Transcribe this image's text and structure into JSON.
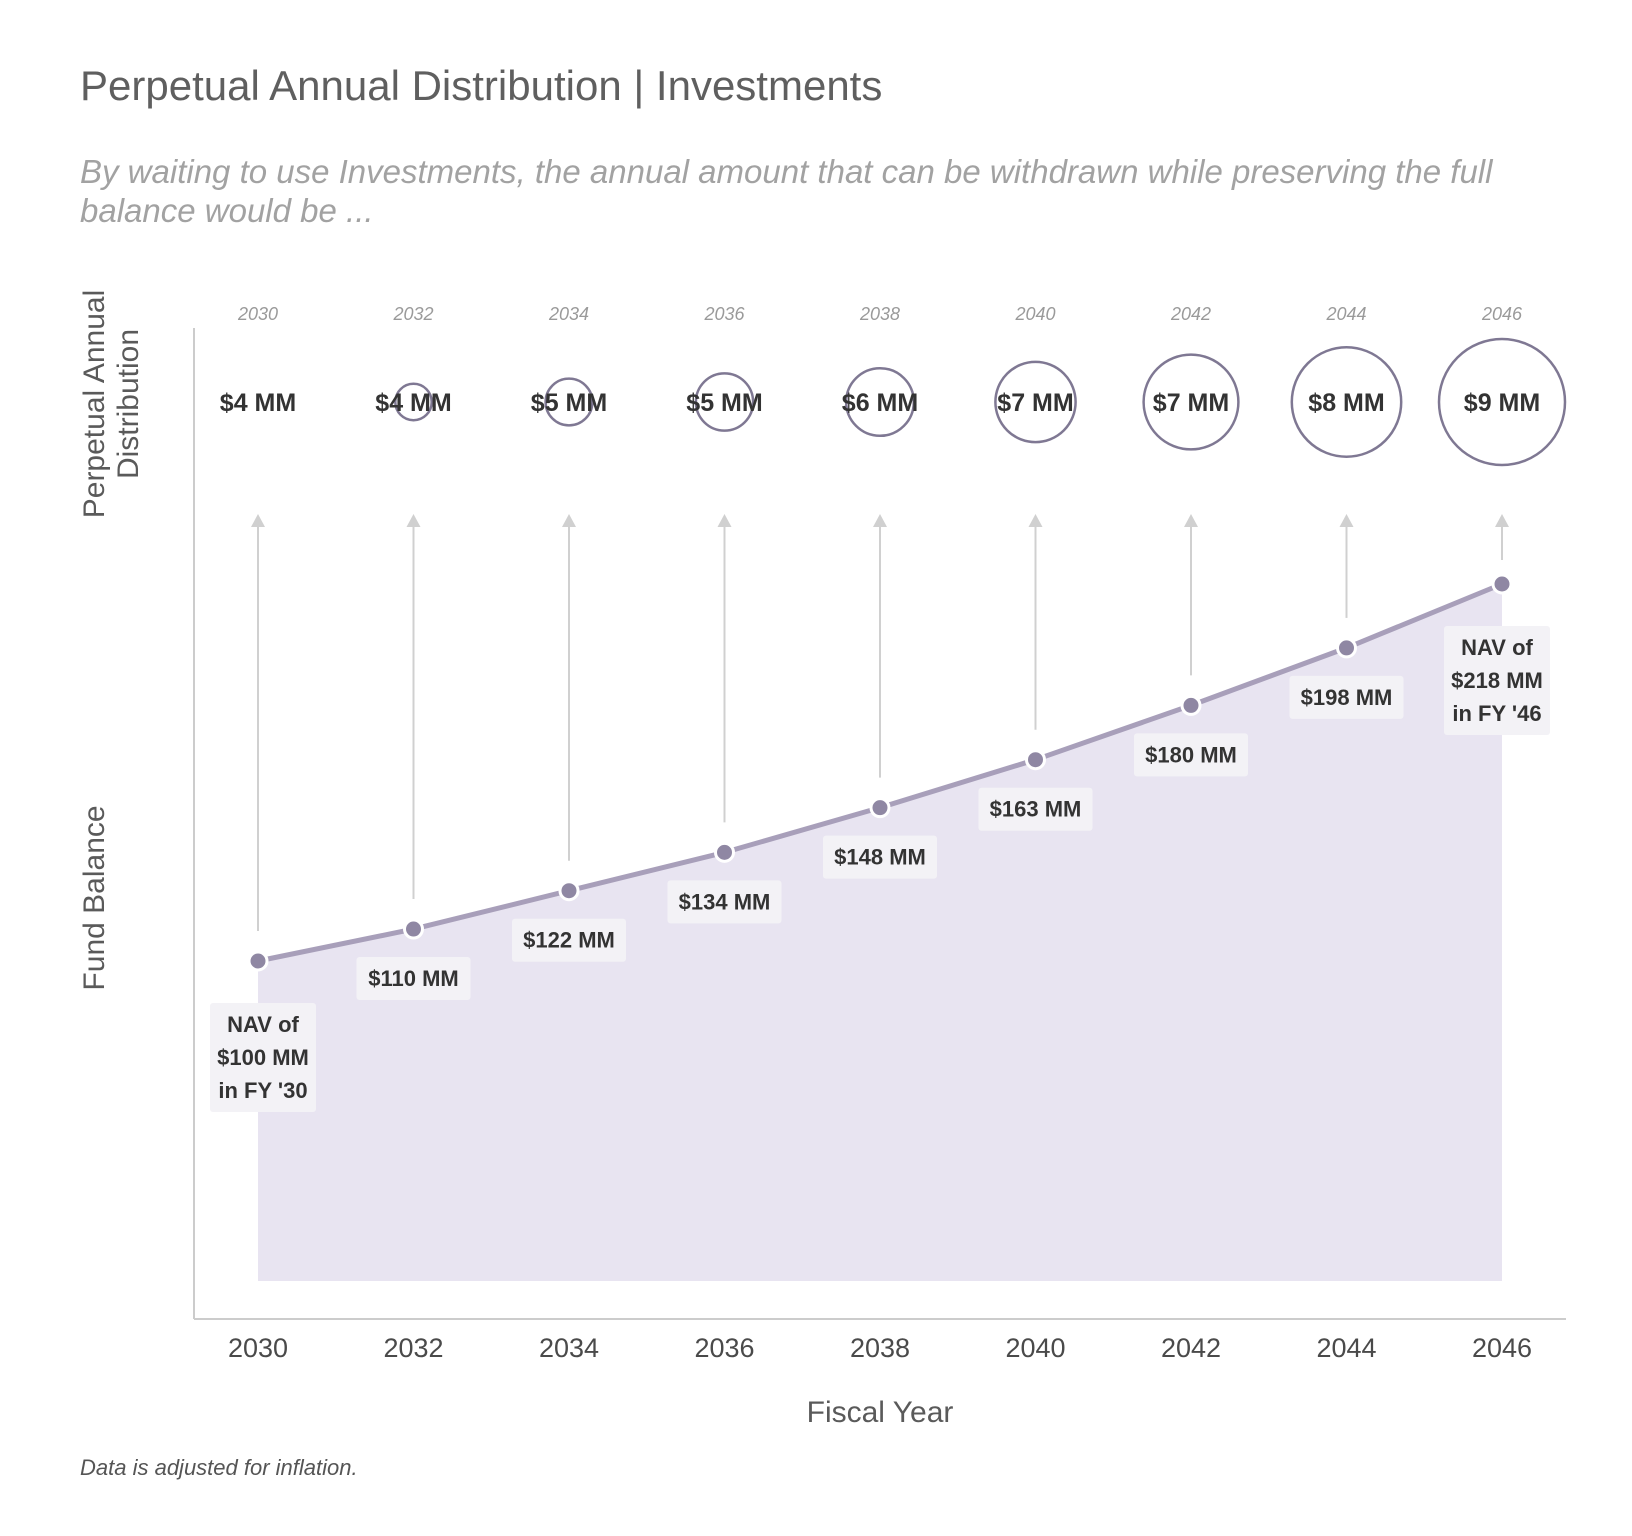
{
  "title": "Perpetual Annual Distribution | Investments",
  "subtitle": "By waiting to use Investments, the annual amount that can be withdrawn while preserving the full balance would be ...",
  "footnote": "Data is adjusted for inflation.",
  "colors": {
    "area": "#e8e4f1",
    "line": "#a89fba",
    "point": "#8f87a3",
    "circle": "#7f7893",
    "arrow": "#d0d0d0",
    "axis": "#cccccc",
    "label_bg": "#f3f2f6"
  },
  "chart_data": {
    "type": "area",
    "xlabel": "Fiscal Year",
    "ylabel_top": "Perpetual Annual Distribution",
    "ylabel_bottom": "Fund Balance",
    "x": [
      2030,
      2032,
      2034,
      2036,
      2038,
      2040,
      2042,
      2044,
      2046
    ],
    "x_ticks": [
      "2030",
      "2032",
      "2034",
      "2036",
      "2038",
      "2040",
      "2042",
      "2044",
      "2046"
    ],
    "top_years": [
      "2030",
      "2032",
      "2034",
      "2036",
      "2038",
      "2040",
      "2042",
      "2044",
      "2046"
    ],
    "series": [
      {
        "values": [
          100,
          110,
          122,
          134,
          148,
          163,
          180,
          198,
          218
        ],
        "labels": [
          [
            "NAV of",
            "$100 MM",
            "in FY '30"
          ],
          [
            "$110 MM"
          ],
          [
            "$122 MM"
          ],
          [
            "$134 MM"
          ],
          [
            "$148 MM"
          ],
          [
            "$163 MM"
          ],
          [
            "$180 MM"
          ],
          [
            "$198 MM"
          ],
          [
            "NAV of",
            "$218 MM",
            "in FY '46"
          ]
        ]
      },
      {
        "values": [
          4.0,
          4.4,
          4.9,
          5.4,
          5.9,
          6.5,
          7.2,
          7.9,
          8.7
        ],
        "labels": [
          "$4 MM",
          "$4 MM",
          "$5 MM",
          "$5 MM",
          "$6 MM",
          "$7 MM",
          "$7 MM",
          "$8 MM",
          "$9 MM"
        ]
      }
    ],
    "xlim": [
      2029.4,
      2046.8
    ],
    "ylim": [
      20,
      230
    ],
    "grid": false,
    "legend": "none"
  }
}
